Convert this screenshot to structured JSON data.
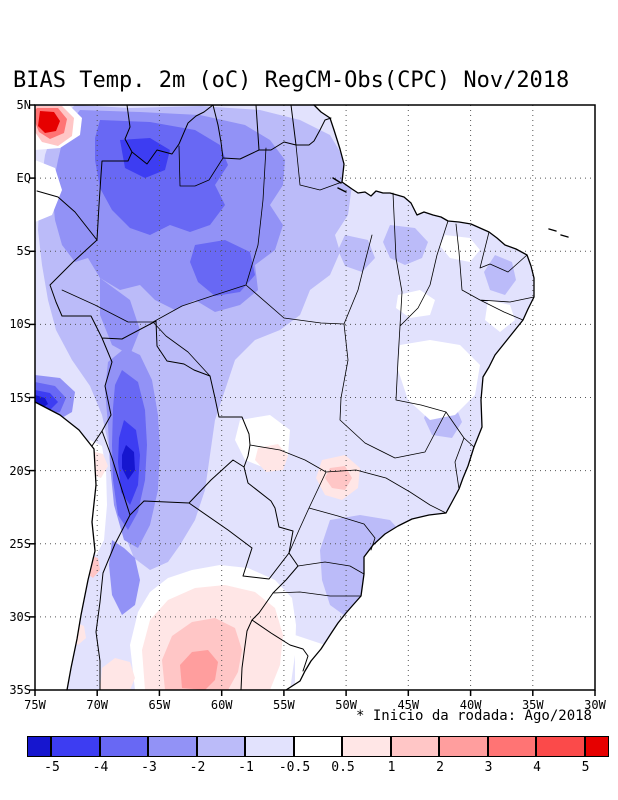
{
  "title": "BIAS Temp. 2m (oC) RegCM-Obs(CPC) Nov/2018",
  "footnote": "* Inicio da rodada: Ago/2018",
  "chart_data": {
    "type": "heatmap",
    "subtype": "filled-contour-map",
    "title": "BIAS Temp. 2m (oC) RegCM-Obs(CPC) Nov/2018",
    "variable": "2 m temperature bias (RegCM model minus CPC observations), degrees Celsius",
    "month": "Nov/2018",
    "run_start_note": "* Inicio da rodada: Ago/2018",
    "region": "South America (Brazil domain)",
    "x_axis": {
      "label": "longitude",
      "ticks": [
        "75W",
        "70W",
        "65W",
        "60W",
        "55W",
        "50W",
        "45W",
        "40W",
        "35W",
        "30W"
      ],
      "range": [
        "75W",
        "30W"
      ]
    },
    "y_axis": {
      "label": "latitude",
      "ticks": [
        "5N",
        "EQ",
        "5S",
        "10S",
        "15S",
        "20S",
        "25S",
        "30S",
        "35S"
      ],
      "range": [
        "5N",
        "35S"
      ]
    },
    "grid": "dotted 5-degree graticule",
    "legend_position": "bottom horizontal colorbar",
    "colorbar": {
      "levels": [
        -5,
        -4,
        -3,
        -2,
        -1,
        -0.5,
        0.5,
        1,
        2,
        3,
        4,
        5
      ],
      "labels": [
        "-5",
        "-4",
        "-3",
        "-2",
        "-1",
        "-0.5",
        "0.5",
        "1",
        "2",
        "3",
        "4",
        "5"
      ],
      "colors": [
        "#1616cf",
        "#3d3df2",
        "#6868f4",
        "#9292f6",
        "#bbbbf9",
        "#e2e2fd",
        "#ffffff",
        "#ffe6e6",
        "#ffc6c6",
        "#ff9e9e",
        "#ff7474",
        "#fb4a4a",
        "#e60000"
      ]
    },
    "notable_features": [
      "Widespread cold bias of -1 to -4 C over the Amazon basin and northwestern Brazil",
      "Strongest cold bias band (-4 to -5 C) along the Andes/Bolivia between about 12S and 25S and at the left edge near 15S",
      "Localized warm bias spot (> 4 C) in the far northwest corner near 5N 74W",
      "Warm bias of 1 to 3 C over northern Argentina/far southern Brazil around 30S-35S and small warm spots near 20S 52W",
      "Near-zero bias (white) over parts of eastern Bahia, the Pantanal and the far south",
      "Moderate cold bias (-1 to -2 C) pocket over southern Brazil around 25S-28S 50W"
    ]
  }
}
